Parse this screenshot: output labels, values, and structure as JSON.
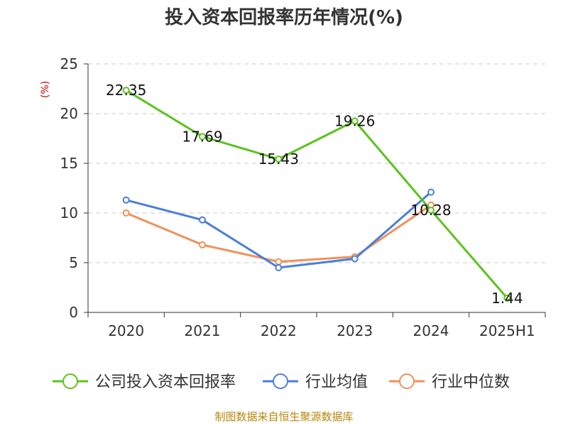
{
  "chart_data": {
    "type": "line",
    "title": "投入资本回报率历年情况(%)",
    "ylabel": "(%)",
    "ylim": [
      0,
      25
    ],
    "yticks": [
      0,
      5,
      10,
      15,
      20,
      25
    ],
    "categories": [
      "2020",
      "2021",
      "2022",
      "2023",
      "2024",
      "2025H1"
    ],
    "grid": true,
    "legend_position": "bottom",
    "series": [
      {
        "name": "公司投入资本回报率",
        "color": "#5cc21e",
        "values": [
          22.35,
          17.69,
          15.43,
          19.26,
          10.28,
          1.44
        ],
        "labels": true
      },
      {
        "name": "行业均值",
        "color": "#4a7fd9",
        "values": [
          11.3,
          9.3,
          4.5,
          5.4,
          12.1,
          null
        ],
        "labels": false
      },
      {
        "name": "行业中位数",
        "color": "#f0905a",
        "values": [
          10.0,
          6.8,
          5.1,
          5.6,
          10.8,
          null
        ],
        "labels": false
      }
    ]
  },
  "source": "制图数据来自恒生聚源数据库"
}
